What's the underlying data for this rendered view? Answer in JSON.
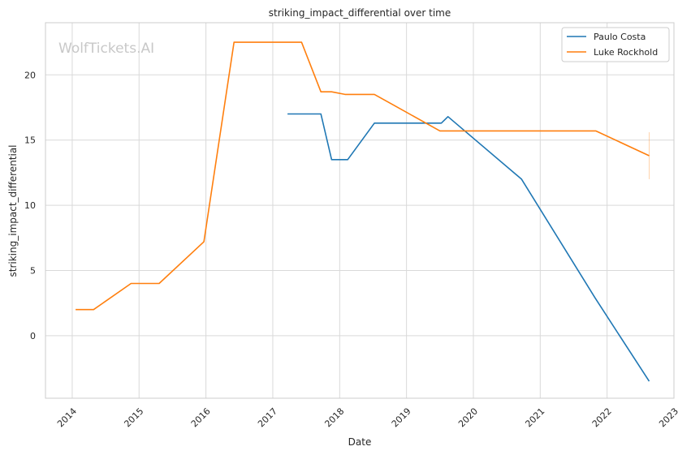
{
  "chart_data": {
    "type": "line",
    "title": "striking_impact_differential over time",
    "xlabel": "Date",
    "ylabel": "striking_impact_differential",
    "watermark": "WolfTickets.AI",
    "xlim": [
      2013.6,
      2023.0
    ],
    "ylim": [
      -4.8,
      24.0
    ],
    "x_ticks": [
      2014,
      2015,
      2016,
      2017,
      2018,
      2019,
      2020,
      2021,
      2022,
      2023
    ],
    "x_tick_labels": [
      "2014",
      "2015",
      "2016",
      "2017",
      "2018",
      "2019",
      "2020",
      "2021",
      "2022",
      "2023"
    ],
    "y_ticks": [
      0,
      5,
      10,
      15,
      20
    ],
    "y_tick_labels": [
      "0",
      "5",
      "10",
      "15",
      "20"
    ],
    "grid": true,
    "legend_position": "top-right",
    "series": [
      {
        "name": "Paulo Costa",
        "color": "#1f77b4",
        "x": [
          2017.22,
          2017.72,
          2017.88,
          2018.12,
          2018.52,
          2019.52,
          2019.62,
          2020.72,
          2021.82,
          2022.63
        ],
        "y": [
          17.0,
          17.0,
          13.5,
          13.5,
          16.3,
          16.3,
          16.8,
          12.0,
          2.9,
          -3.5
        ]
      },
      {
        "name": "Luke Rockhold",
        "color": "#ff7f0e",
        "x": [
          2014.05,
          2014.32,
          2014.88,
          2015.3,
          2015.97,
          2016.42,
          2017.43,
          2017.72,
          2017.88,
          2018.08,
          2018.52,
          2019.5,
          2021.83,
          2022.63
        ],
        "y": [
          2.0,
          2.0,
          4.0,
          4.0,
          7.2,
          22.5,
          22.5,
          18.7,
          18.7,
          18.5,
          18.5,
          15.7,
          15.7,
          13.8
        ]
      }
    ],
    "error_bar": {
      "series": "Luke Rockhold",
      "x": 2022.63,
      "low": 12.0,
      "high": 15.6
    }
  }
}
